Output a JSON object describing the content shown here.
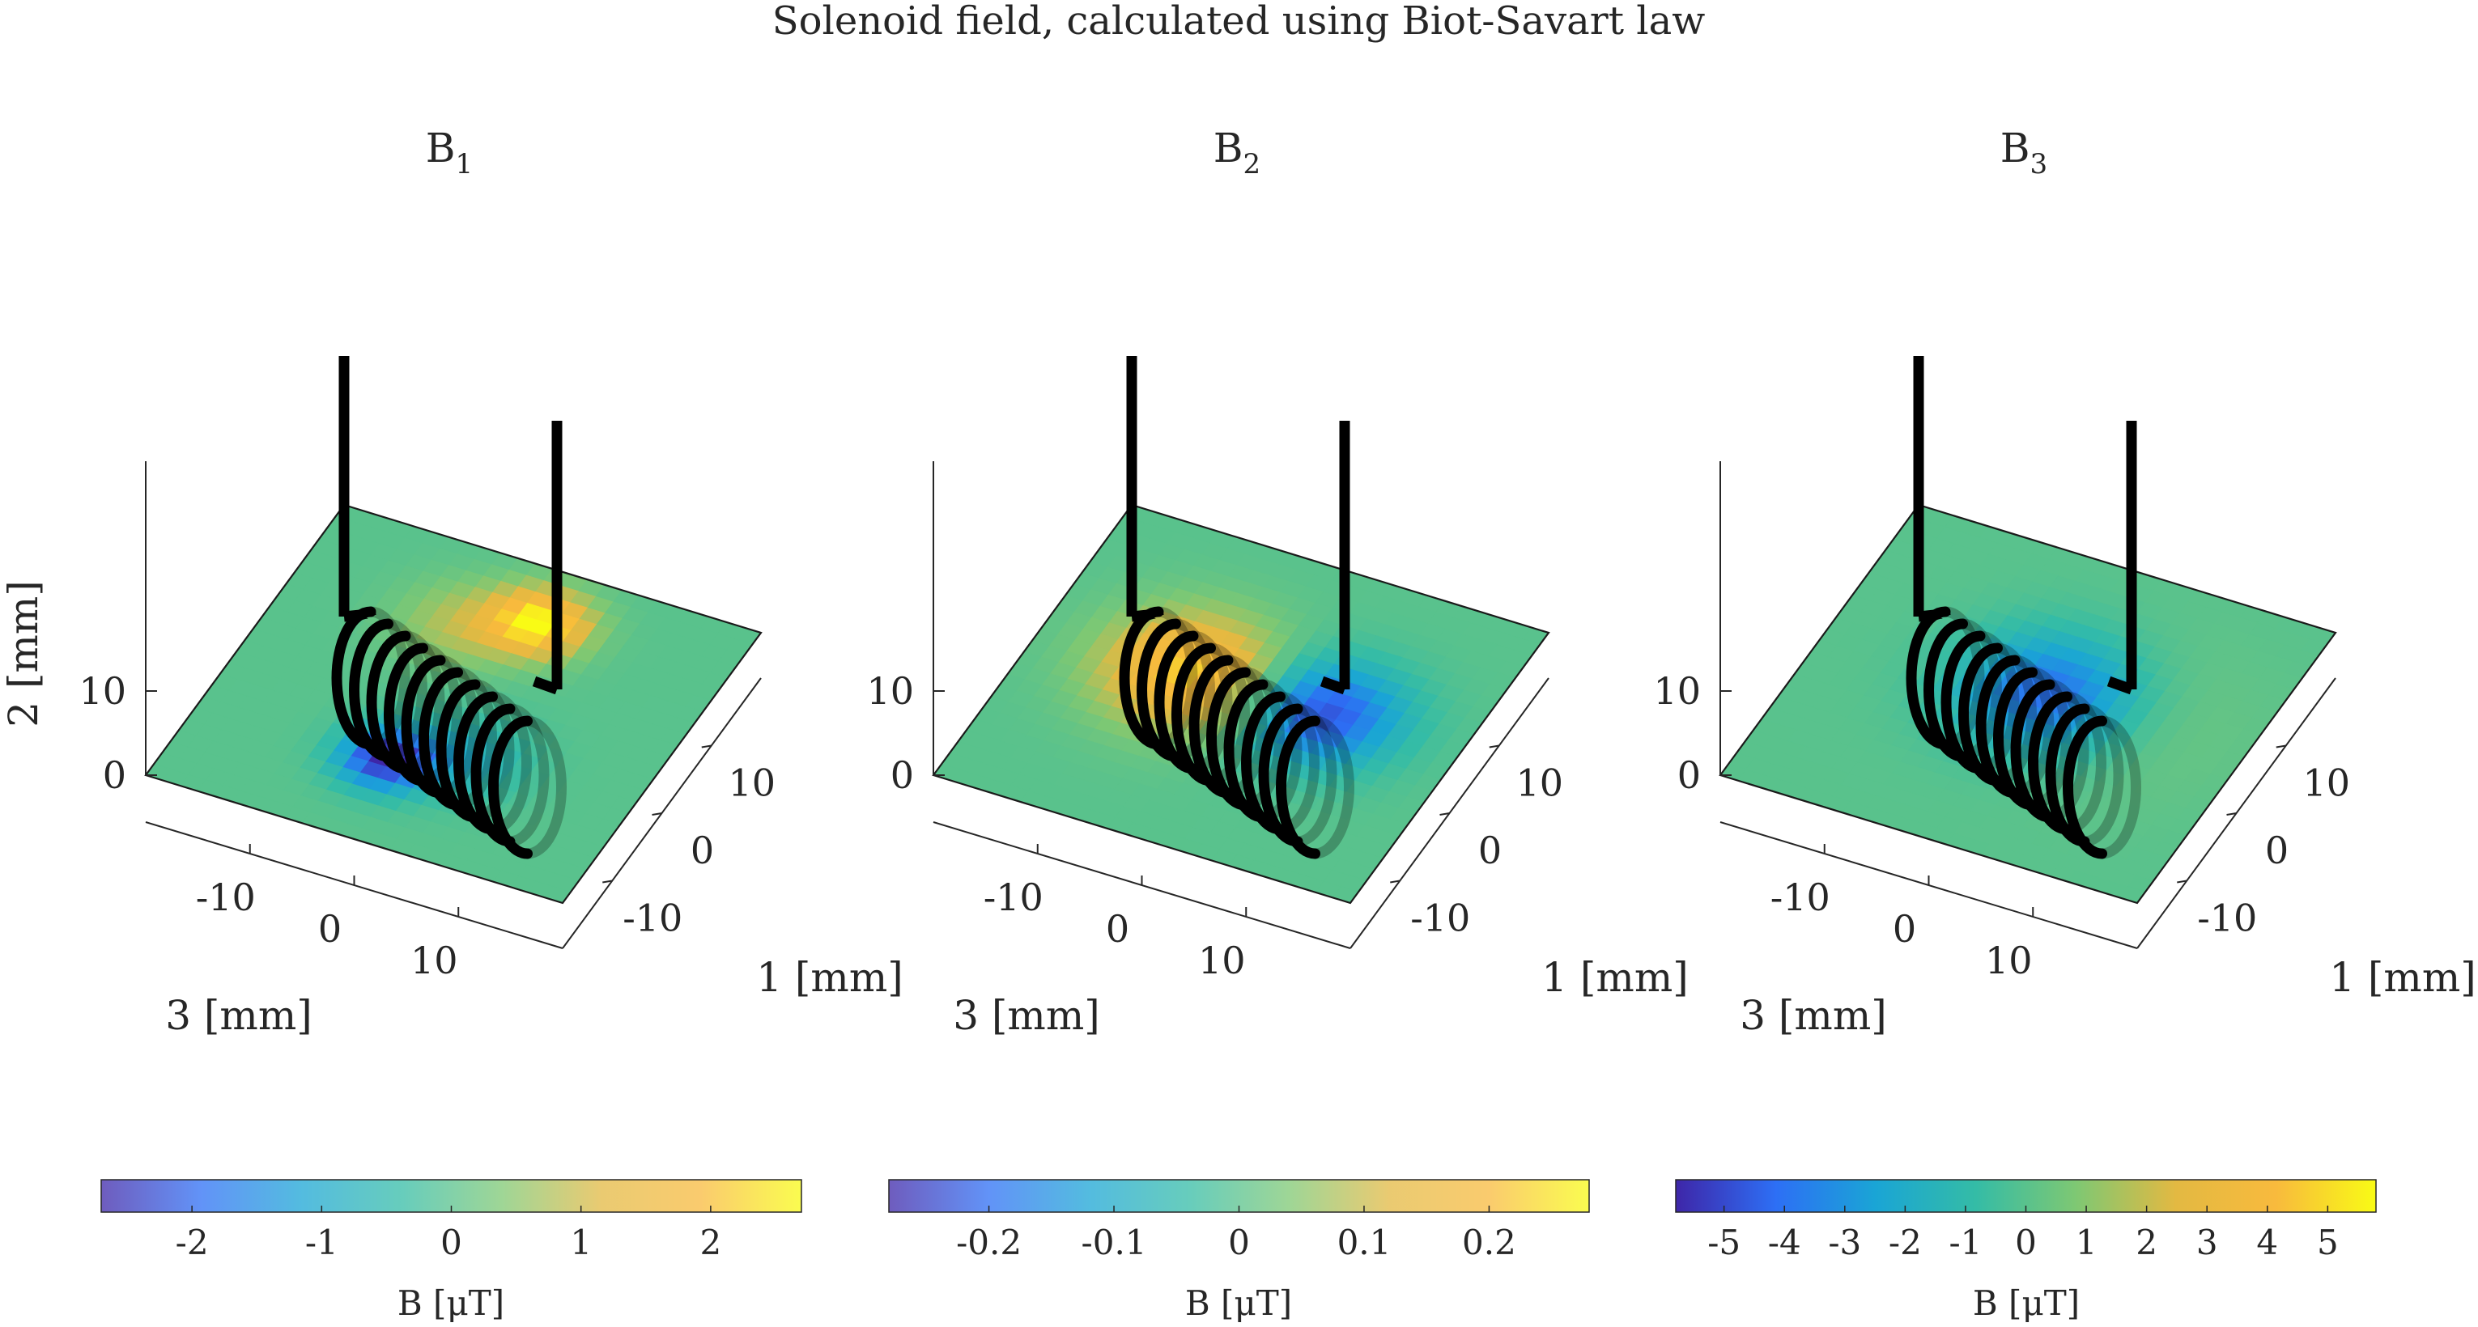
{
  "figure": {
    "title": "Solenoid field, calculated using Biot-Savart law"
  },
  "chart_data": [
    {
      "type": "heatmap",
      "title_base": "B",
      "title_sub": "1",
      "xlabel": "3 [mm]",
      "ylabel": "1 [mm]",
      "zlabel": "2 [mm]",
      "x_ticks": [
        -10,
        0,
        10
      ],
      "y_ticks": [
        -10,
        0,
        10
      ],
      "z_ticks": [
        0,
        10
      ],
      "field_pattern": "B1 dipole lobes at coil ends: positive near one end, negative near other",
      "colorbar": {
        "label": "B [μT]",
        "range": [
          -2.7,
          2.7
        ],
        "ticks": [
          -2,
          -1,
          0,
          1,
          2
        ]
      }
    },
    {
      "type": "heatmap",
      "title_base": "B",
      "title_sub": "2",
      "xlabel": "3 [mm]",
      "ylabel": "1 [mm]",
      "zlabel": "",
      "x_ticks": [
        -10,
        0,
        10
      ],
      "y_ticks": [
        -10,
        0,
        10
      ],
      "z_ticks": [
        0,
        10
      ],
      "field_pattern": "B2 positive along far side of coil, negative along near side",
      "colorbar": {
        "label": "B [μT]",
        "range": [
          -0.28,
          0.28
        ],
        "ticks": [
          -0.2,
          -0.1,
          0,
          0.1,
          0.2
        ]
      }
    },
    {
      "type": "heatmap",
      "title_base": "B",
      "title_sub": "3",
      "xlabel": "3 [mm]",
      "ylabel": "1 [mm]",
      "zlabel": "",
      "x_ticks": [
        -10,
        0,
        10
      ],
      "y_ticks": [
        -10,
        0,
        10
      ],
      "z_ticks": [
        0,
        10
      ],
      "field_pattern": "B3 strongly negative inside coil, weakly positive outside",
      "colorbar": {
        "label": "B [μT]",
        "range": [
          -5.8,
          5.8
        ],
        "ticks": [
          -5,
          -4,
          -3,
          -2,
          -1,
          0,
          1,
          2,
          3,
          4,
          5
        ]
      }
    }
  ],
  "colors": {
    "parula": [
      "#3e26a8",
      "#2d6ff5",
      "#1aa5d5",
      "#34bca6",
      "#7ec873",
      "#e3b942",
      "#f8ba3d",
      "#f9fb15"
    ]
  }
}
